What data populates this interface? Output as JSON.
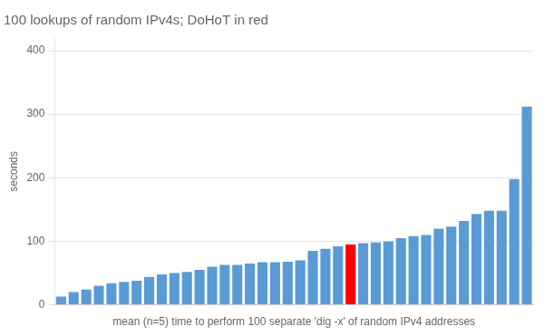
{
  "chart_data": {
    "type": "bar",
    "title": "100 lookups of random IPv4s; DoHoT in red",
    "xlabel": "mean (n=5) time to perform 100 separate 'dig -x' of random IPv4 addresses",
    "ylabel": "seconds",
    "categories": [
      null,
      null,
      null,
      null,
      null,
      null,
      null,
      null,
      null,
      null,
      null,
      null,
      null,
      null,
      null,
      null,
      null,
      null,
      null,
      null,
      null,
      null,
      null,
      null,
      null,
      null,
      null,
      null,
      null,
      null,
      null,
      null,
      null,
      null,
      null,
      null,
      null,
      null
    ],
    "values": [
      13,
      20,
      24,
      30,
      34,
      36,
      38,
      44,
      48,
      50,
      52,
      55,
      60,
      63,
      63,
      65,
      67,
      67,
      68,
      70,
      85,
      88,
      92,
      95,
      97,
      98,
      100,
      105,
      108,
      110,
      120,
      123,
      132,
      143,
      148,
      148,
      198,
      312
    ],
    "colors": [
      "#5B9BD5",
      "#5B9BD5",
      "#5B9BD5",
      "#5B9BD5",
      "#5B9BD5",
      "#5B9BD5",
      "#5B9BD5",
      "#5B9BD5",
      "#5B9BD5",
      "#5B9BD5",
      "#5B9BD5",
      "#5B9BD5",
      "#5B9BD5",
      "#5B9BD5",
      "#5B9BD5",
      "#5B9BD5",
      "#5B9BD5",
      "#5B9BD5",
      "#5B9BD5",
      "#5B9BD5",
      "#5B9BD5",
      "#5B9BD5",
      "#5B9BD5",
      "#FF0000",
      "#5B9BD5",
      "#5B9BD5",
      "#5B9BD5",
      "#5B9BD5",
      "#5B9BD5",
      "#5B9BD5",
      "#5B9BD5",
      "#5B9BD5",
      "#5B9BD5",
      "#5B9BD5",
      "#5B9BD5",
      "#5B9BD5",
      "#5B9BD5",
      "#5B9BD5"
    ],
    "ylim": [
      0,
      420
    ],
    "yticks": [
      0,
      100,
      200,
      300,
      400
    ],
    "grid": true,
    "tick_labels": "y"
  }
}
